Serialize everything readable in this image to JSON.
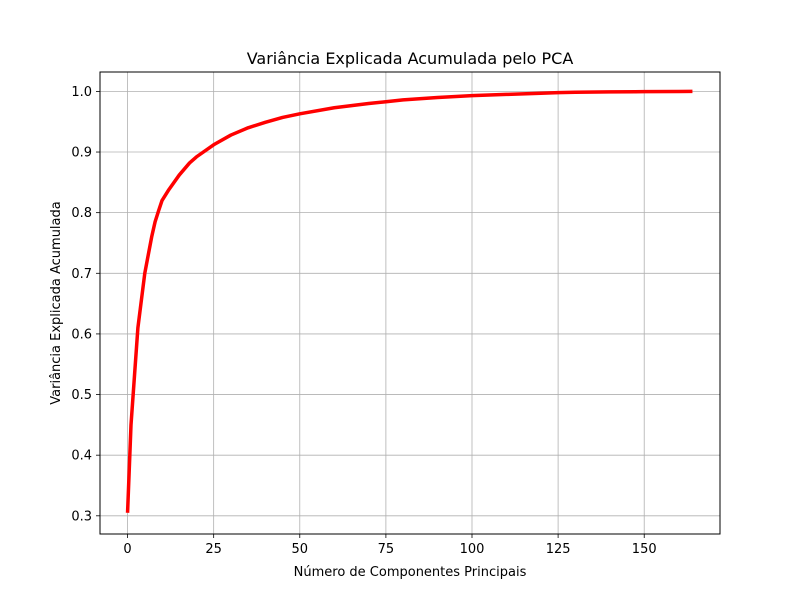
{
  "chart_data": {
    "type": "line",
    "title": "Variância Explicada Acumulada pelo PCA",
    "xlabel": "Número de Componentes Principais",
    "ylabel": "Variância Explicada Acumulada",
    "xlim": [
      -8,
      172
    ],
    "ylim": [
      0.27,
      1.032
    ],
    "xticks": [
      0,
      25,
      50,
      75,
      100,
      125,
      150
    ],
    "yticks": [
      0.3,
      0.4,
      0.5,
      0.6,
      0.7,
      0.8,
      0.9,
      1.0
    ],
    "xtick_labels": [
      "0",
      "25",
      "50",
      "75",
      "100",
      "125",
      "150"
    ],
    "ytick_labels": [
      "0.3",
      "0.4",
      "0.5",
      "0.6",
      "0.7",
      "0.8",
      "0.9",
      "1.0"
    ],
    "grid": true,
    "series": [
      {
        "color": "#ff0000",
        "x": [
          0,
          1,
          2,
          3,
          4,
          5,
          6,
          7,
          8,
          9,
          10,
          12,
          15,
          18,
          20,
          25,
          30,
          35,
          40,
          45,
          50,
          60,
          70,
          75,
          80,
          90,
          100,
          110,
          120,
          125,
          130,
          140,
          150,
          160,
          164
        ],
        "y": [
          0.305,
          0.45,
          0.53,
          0.61,
          0.655,
          0.7,
          0.73,
          0.76,
          0.785,
          0.803,
          0.82,
          0.838,
          0.862,
          0.882,
          0.892,
          0.912,
          0.928,
          0.94,
          0.949,
          0.957,
          0.963,
          0.973,
          0.98,
          0.983,
          0.986,
          0.99,
          0.993,
          0.995,
          0.997,
          0.998,
          0.9985,
          0.9992,
          0.9996,
          0.9999,
          1.0
        ]
      }
    ]
  }
}
